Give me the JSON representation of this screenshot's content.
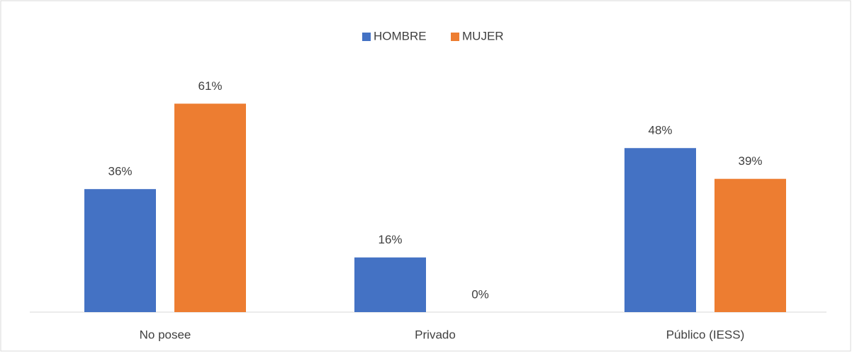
{
  "chart_data": {
    "type": "bar",
    "categories": [
      "No posee",
      "Privado",
      "Público (IESS)"
    ],
    "series": [
      {
        "name": "HOMBRE",
        "color": "#4472c4",
        "values": [
          36,
          16,
          48
        ],
        "value_labels": [
          "36%",
          "16%",
          "48%"
        ]
      },
      {
        "name": "MUJER",
        "color": "#ed7d31",
        "values": [
          61,
          0,
          39
        ],
        "value_labels": [
          "61%",
          "0%",
          "39%"
        ]
      }
    ],
    "ylim": [
      0,
      70
    ],
    "legend": "top"
  }
}
